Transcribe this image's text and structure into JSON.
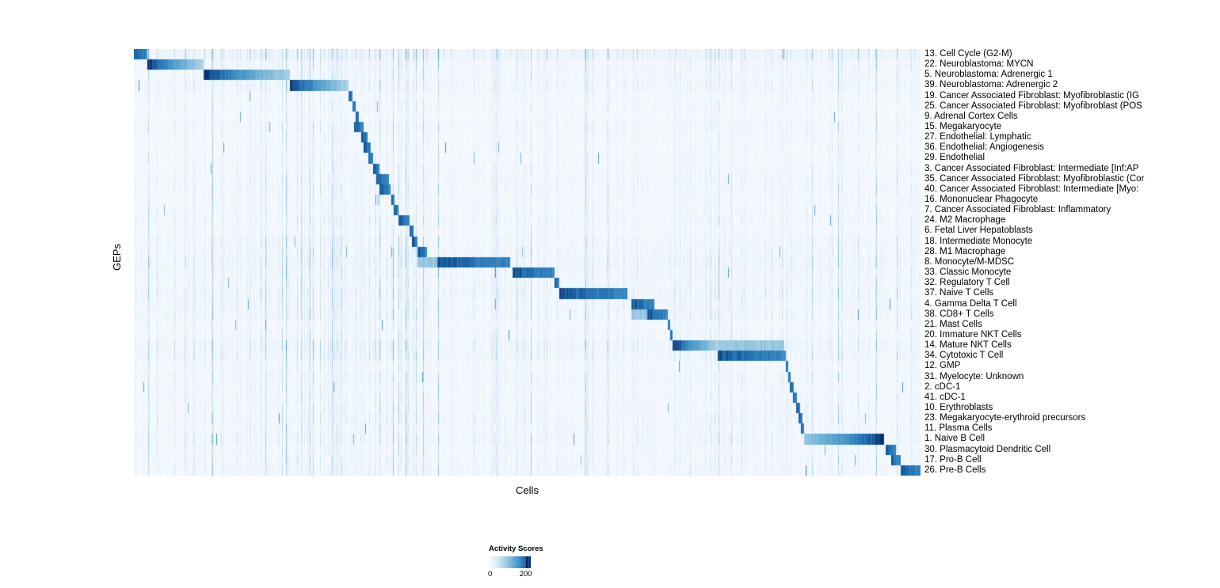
{
  "chart_data": {
    "type": "heatmap",
    "title": "",
    "xlabel": "Cells",
    "ylabel": "GEPs",
    "legend": {
      "title": "Activity Scores",
      "min": 0,
      "max": 200
    },
    "colors": {
      "low": "#f7fbff",
      "high": "#08306b"
    },
    "layout": {
      "grid": false,
      "legend_position": "bottom-left",
      "row_label_side": "right"
    },
    "rows": [
      {
        "label": "13. Cell Cycle (G2-M)",
        "block": [
          0.0,
          0.017
        ],
        "grad": "flat",
        "noise": 2.0
      },
      {
        "label": "22. Neuroblastoma: MYCN",
        "block": [
          0.017,
          0.088
        ],
        "grad": "left",
        "noise": 1.2
      },
      {
        "label": "5. Neuroblastoma: Adrenergic 1",
        "block": [
          0.088,
          0.198
        ],
        "grad": "left",
        "noise": 1.0
      },
      {
        "label": "39. Neuroblastoma: Adrenergic 2",
        "block": [
          0.198,
          0.272
        ],
        "grad": "left",
        "noise": 1.2
      },
      {
        "label": "19. Cancer Associated Fibroblast: Myofibroblastic (IG",
        "block": [
          0.272,
          0.277
        ],
        "grad": "flat",
        "noise": 0.8
      },
      {
        "label": "25. Cancer Associated Fibroblast: Myofibroblast (POS",
        "block": [
          0.277,
          0.281
        ],
        "grad": "flat",
        "noise": 0.8
      },
      {
        "label": "9. Adrenal Cortex Cells",
        "block": [
          0.281,
          0.285
        ],
        "grad": "flat",
        "noise": 0.7
      },
      {
        "label": "15. Megakaryocyte",
        "block": [
          0.279,
          0.292
        ],
        "grad": "flat",
        "noise": 1.0
      },
      {
        "label": "27. Endothelial: Lymphatic",
        "block": [
          0.289,
          0.297
        ],
        "grad": "flat",
        "noise": 0.8
      },
      {
        "label": "36. Endothelial: Angiogenesis",
        "block": [
          0.292,
          0.301
        ],
        "grad": "flat",
        "noise": 0.8
      },
      {
        "label": "29. Endothelial",
        "block": [
          0.298,
          0.304
        ],
        "grad": "flat",
        "noise": 0.8
      },
      {
        "label": "3. Cancer Associated Fibroblast: Intermediate [Inf:AP",
        "block": [
          0.304,
          0.312
        ],
        "grad": "flat",
        "noise": 0.9
      },
      {
        "label": "35. Cancer Associated Fibroblast: Myofibroblastic (Cor",
        "block": [
          0.308,
          0.324
        ],
        "grad": "flat",
        "noise": 1.0
      },
      {
        "label": "40. Cancer Associated Fibroblast: Intermediate [Myo:",
        "block": [
          0.312,
          0.326
        ],
        "grad": "flat",
        "noise": 1.0
      },
      {
        "label": "16. Mononuclear Phagocyte",
        "block": [
          0.327,
          0.331
        ],
        "grad": "flat",
        "noise": 0.9
      },
      {
        "label": "7. Cancer Associated Fibroblast: Inflammatory",
        "block": [
          0.33,
          0.336
        ],
        "grad": "flat",
        "noise": 0.9
      },
      {
        "label": "24. M2 Macrophage",
        "block": [
          0.336,
          0.35
        ],
        "grad": "flat",
        "noise": 1.1
      },
      {
        "label": "6. Fetal Liver Hepatoblasts",
        "block": [
          0.35,
          0.355
        ],
        "grad": "flat",
        "noise": 0.9
      },
      {
        "label": "18. Intermediate Monocyte",
        "block": [
          0.353,
          0.36
        ],
        "grad": "flat",
        "noise": 1.2
      },
      {
        "label": "28. M1 Macrophage",
        "block": [
          0.36,
          0.372
        ],
        "grad": "flat",
        "noise": 1.3
      },
      {
        "label": "8. Monocyte/M-MDSC",
        "block": [
          0.385,
          0.478
        ],
        "grad": "flat",
        "noise": 1.5,
        "soft": [
          0.36,
          0.385
        ]
      },
      {
        "label": "33. Classic Monocyte",
        "block": [
          0.481,
          0.534
        ],
        "grad": "flat",
        "noise": 1.3
      },
      {
        "label": "32. Regulatory T Cell",
        "block": [
          0.534,
          0.54
        ],
        "grad": "flat",
        "noise": 1.2
      },
      {
        "label": "37. Naive T Cells",
        "block": [
          0.54,
          0.627
        ],
        "grad": "flat",
        "noise": 1.4
      },
      {
        "label": "4. Gamma Delta T Cell",
        "block": [
          0.632,
          0.661
        ],
        "grad": "flat",
        "noise": 1.3
      },
      {
        "label": "38. CD8+ T Cells",
        "block": [
          0.652,
          0.678
        ],
        "grad": "flat",
        "noise": 1.3,
        "soft": [
          0.632,
          0.652
        ]
      },
      {
        "label": "21. Mast Cells",
        "block": [
          0.678,
          0.681
        ],
        "grad": "flat",
        "noise": 0.9
      },
      {
        "label": "20. Immature NKT Cells",
        "block": [
          0.681,
          0.684
        ],
        "grad": "flat",
        "noise": 1.1
      },
      {
        "label": "14. Mature NKT Cells",
        "block": [
          0.684,
          0.742
        ],
        "grad": "left",
        "noise": 1.5,
        "soft": [
          0.742,
          0.826
        ]
      },
      {
        "label": "34. Cytotoxic T Cell",
        "block": [
          0.742,
          0.828
        ],
        "grad": "flat",
        "noise": 1.4
      },
      {
        "label": "12. GMP",
        "block": [
          0.828,
          0.831
        ],
        "grad": "flat",
        "noise": 0.9
      },
      {
        "label": "31. Myelocyte: Unknown",
        "block": [
          0.831,
          0.834
        ],
        "grad": "flat",
        "noise": 1.1
      },
      {
        "label": "2. cDC-1",
        "block": [
          0.833,
          0.838
        ],
        "grad": "flat",
        "noise": 1.0
      },
      {
        "label": "41. cDC-1",
        "block": [
          0.837,
          0.842
        ],
        "grad": "flat",
        "noise": 1.0
      },
      {
        "label": "10. Erythroblasts",
        "block": [
          0.841,
          0.846
        ],
        "grad": "flat",
        "noise": 1.1
      },
      {
        "label": "23. Megakaryocyte-erythroid precursors",
        "block": [
          0.844,
          0.849
        ],
        "grad": "flat",
        "noise": 1.2
      },
      {
        "label": "11. Plasma Cells",
        "block": [
          0.847,
          0.851
        ],
        "grad": "flat",
        "noise": 1.1
      },
      {
        "label": "1. Naive B Cell",
        "block": [
          0.851,
          0.953
        ],
        "grad": "right",
        "noise": 1.3
      },
      {
        "label": "30. Plasmacytoid Dendritic Cell",
        "block": [
          0.955,
          0.968
        ],
        "grad": "flat",
        "noise": 1.0
      },
      {
        "label": "17. Pro-B Cell",
        "block": [
          0.962,
          0.974
        ],
        "grad": "flat",
        "noise": 1.1
      },
      {
        "label": "26. Pre-B Cells",
        "block": [
          0.974,
          1.0
        ],
        "grad": "flat",
        "noise": 1.2
      }
    ]
  }
}
